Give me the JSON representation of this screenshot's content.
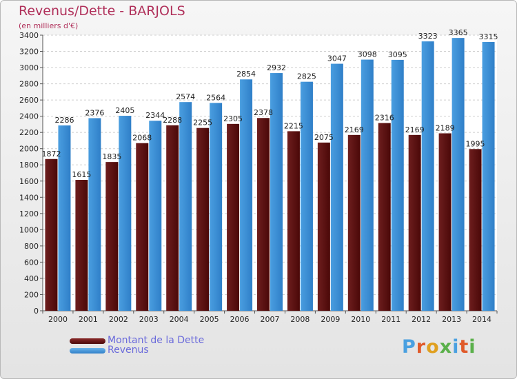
{
  "header": {
    "title": "Revenus/Dette - BARJOLS",
    "subtitle": "(en milliers d'€)"
  },
  "legend": {
    "debt_label": "Montant de la Dette",
    "revenue_label": "Revenus"
  },
  "brand": {
    "text": "Proxiti",
    "letter_colors": [
      "#4aa0e0",
      "#e05a2a",
      "#e0a020",
      "#5ab04a",
      "#4aa0e0",
      "#e05a2a",
      "#5ab04a"
    ]
  },
  "colors": {
    "debt": "#6e1e1e",
    "debt_dark": "#4a0808",
    "revenue": "#4a9ee0",
    "revenue_dark": "#2f7fc8",
    "title": "#b0305a",
    "legend_text": "#6a6adb"
  },
  "chart_data": {
    "type": "bar",
    "title": "Revenus/Dette - BARJOLS",
    "subtitle": "(en milliers d'€)",
    "categories": [
      "2000",
      "2001",
      "2002",
      "2003",
      "2004",
      "2005",
      "2006",
      "2007",
      "2008",
      "2009",
      "2010",
      "2011",
      "2012",
      "2013",
      "2014"
    ],
    "series": [
      {
        "name": "Montant de la Dette",
        "values": [
          1872,
          1615,
          1835,
          2068,
          2288,
          2255,
          2305,
          2378,
          2215,
          2075,
          2169,
          2316,
          2169,
          2189,
          1995
        ],
        "labels": [
          "1872",
          "1615",
          "1835",
          "2068",
          "2288",
          "2255",
          "2305",
          "2378",
          "2215",
          "2075",
          "2169",
          "2316",
          "2169",
          "2189",
          "1995"
        ]
      },
      {
        "name": "Revenus",
        "values": [
          2286,
          2376,
          2405,
          2344,
          2574,
          2564,
          2854,
          2932,
          2825,
          3047,
          3098,
          3095,
          3323,
          3365,
          3315
        ],
        "labels": [
          "2286",
          "2376",
          "2405",
          "2344",
          "2574",
          "2564",
          "2854",
          "2932",
          "2825",
          "3047",
          "3098",
          "3095",
          "3323",
          "3365",
          "3315"
        ]
      }
    ],
    "ylim": [
      0,
      3400
    ],
    "ytick_step": 200,
    "grid": true,
    "legend_position": "bottom-left"
  }
}
